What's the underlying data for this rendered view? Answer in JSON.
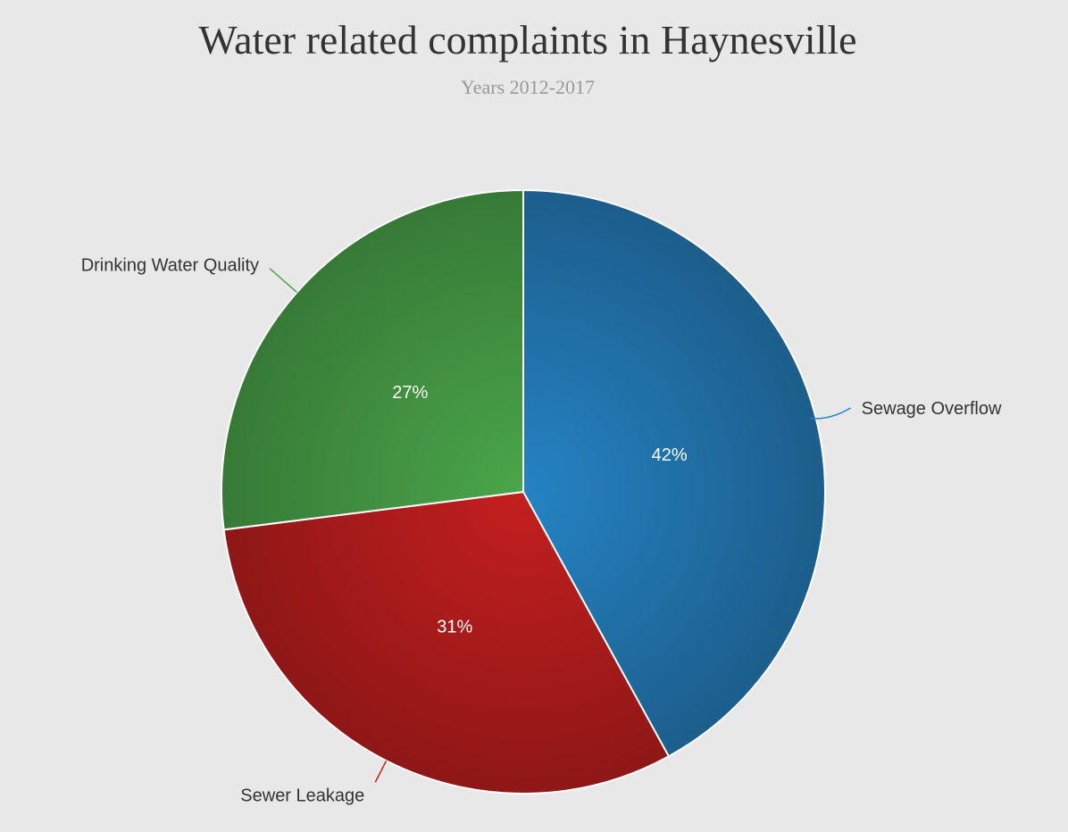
{
  "chart_data": {
    "type": "pie",
    "title": "Water related complaints in Haynesville",
    "subtitle": "Years 2012-2017",
    "slices": [
      {
        "category": "Sewage Overflow",
        "value": 42,
        "label": "42%",
        "color": "#2583c4",
        "shade": "#1c5e8c"
      },
      {
        "category": "Sewer Leakage",
        "value": 31,
        "label": "31%",
        "color": "#c41f1f",
        "shade": "#8f1717"
      },
      {
        "category": "Drinking Water Quality",
        "value": 27,
        "label": "27%",
        "color": "#4aa64a",
        "shade": "#377a37"
      }
    ],
    "start_angle_deg": 0,
    "direction": "clockwise"
  }
}
